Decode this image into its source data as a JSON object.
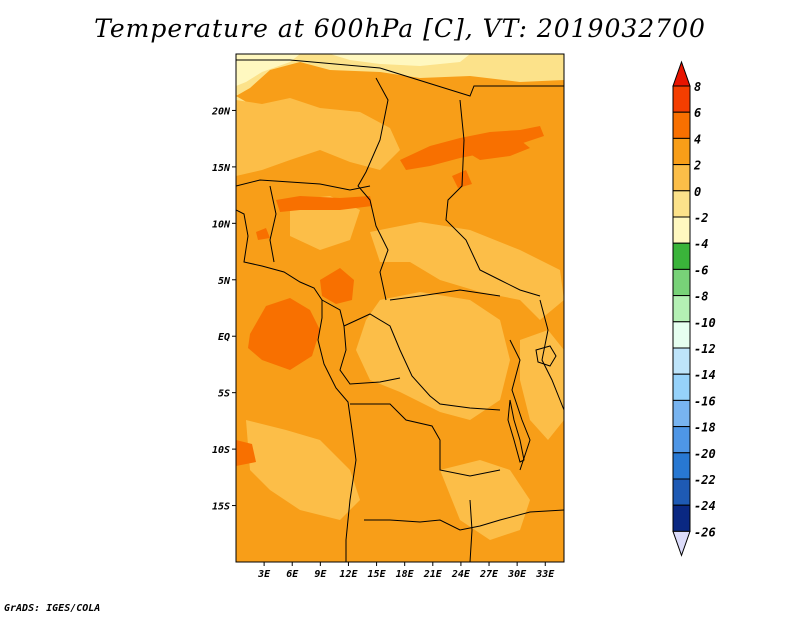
{
  "title": "Temperature at 600hPa [C], VT: 2019032700",
  "credit": "GrADS: IGES/COLA",
  "map": {
    "lon_range": [
      0,
      35
    ],
    "lat_range": [
      -20,
      25
    ],
    "x_ticks": [
      {
        "lon": 3,
        "label": "3E"
      },
      {
        "lon": 6,
        "label": "6E"
      },
      {
        "lon": 9,
        "label": "9E"
      },
      {
        "lon": 12,
        "label": "12E"
      },
      {
        "lon": 15,
        "label": "15E"
      },
      {
        "lon": 18,
        "label": "18E"
      },
      {
        "lon": 21,
        "label": "21E"
      },
      {
        "lon": 24,
        "label": "24E"
      },
      {
        "lon": 27,
        "label": "27E"
      },
      {
        "lon": 30,
        "label": "30E"
      },
      {
        "lon": 33,
        "label": "33E"
      }
    ],
    "y_ticks": [
      {
        "lat": 20,
        "label": "20N"
      },
      {
        "lat": 15,
        "label": "15N"
      },
      {
        "lat": 10,
        "label": "10N"
      },
      {
        "lat": 5,
        "label": "5N"
      },
      {
        "lat": 0,
        "label": "EQ"
      },
      {
        "lat": -5,
        "label": "5S"
      },
      {
        "lat": -10,
        "label": "10S"
      },
      {
        "lat": -15,
        "label": "15S"
      }
    ]
  },
  "colorbar": {
    "levels": [
      "8",
      "6",
      "4",
      "2",
      "0",
      "-2",
      "-4",
      "-6",
      "-8",
      "-10",
      "-12",
      "-14",
      "-16",
      "-18",
      "-20",
      "-22",
      "-24",
      "-26"
    ],
    "colors": [
      "#f43e00",
      "#f87000",
      "#f89e18",
      "#fcbe48",
      "#fce28a",
      "#fff8c0",
      "#3ab43a",
      "#78d278",
      "#b4f0b4",
      "#e6fff0",
      "#bee4fa",
      "#96d2fa",
      "#78b4f0",
      "#4e96e6",
      "#2878d2",
      "#1e5ab4",
      "#0a2882"
    ],
    "top_color": "#e81400",
    "bottom_color": "#dcdcfa"
  }
}
